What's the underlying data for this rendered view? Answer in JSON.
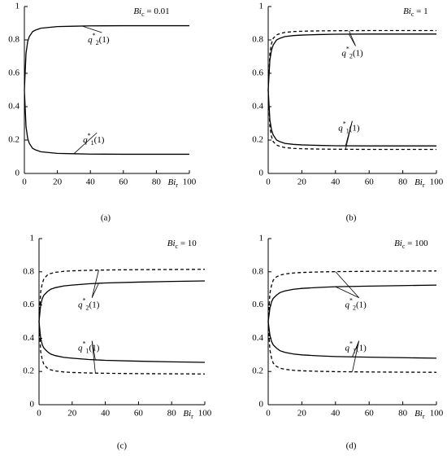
{
  "chart_data": [
    {
      "type": "line",
      "panel_label": "(a)",
      "annotation": [
        "Bi",
        "c",
        " = 0.01"
      ],
      "x_label": [
        "Bi",
        "r"
      ],
      "x": [
        0,
        1,
        2,
        3,
        5,
        7,
        10,
        15,
        20,
        30,
        40,
        60,
        80,
        100
      ],
      "xlim": [
        0,
        100
      ],
      "xticks": [
        0,
        20,
        40,
        60,
        80,
        100
      ],
      "ylim": [
        0,
        1
      ],
      "yticks": [
        0,
        0.2,
        0.4,
        0.6,
        0.8,
        1
      ],
      "series": [
        {
          "color": "#000000",
          "dashed": false,
          "values": [
            0.5,
            0.72,
            0.79,
            0.82,
            0.85,
            0.86,
            0.87,
            0.875,
            0.88,
            0.882,
            0.884,
            0.885,
            0.885,
            0.885
          ]
        },
        {
          "color": "#000000",
          "dashed": false,
          "values": [
            0.5,
            0.28,
            0.21,
            0.18,
            0.15,
            0.14,
            0.13,
            0.125,
            0.12,
            0.118,
            0.116,
            0.115,
            0.115,
            0.115
          ]
        }
      ],
      "curve_labels": [
        [
          "q",
          "*",
          "2",
          "(1)"
        ],
        [
          "q",
          "*",
          "1",
          "(1)"
        ]
      ]
    },
    {
      "type": "line",
      "panel_label": "(b)",
      "annotation": [
        "Bi",
        "c",
        " = 1"
      ],
      "x_label": [
        "Bi",
        "r"
      ],
      "x": [
        0,
        1,
        2,
        3,
        5,
        7,
        10,
        15,
        20,
        30,
        40,
        60,
        80,
        100
      ],
      "xlim": [
        0,
        100
      ],
      "xticks": [
        0,
        20,
        40,
        60,
        80,
        100
      ],
      "ylim": [
        0,
        1
      ],
      "yticks": [
        0,
        0.2,
        0.4,
        0.6,
        0.8,
        1
      ],
      "series": [
        {
          "color": "#000000",
          "dashed": false,
          "values": [
            0.5,
            0.68,
            0.74,
            0.77,
            0.8,
            0.81,
            0.82,
            0.826,
            0.829,
            0.832,
            0.834,
            0.835,
            0.835,
            0.835
          ]
        },
        {
          "color": "#000000",
          "dashed": false,
          "values": [
            0.5,
            0.32,
            0.26,
            0.23,
            0.2,
            0.19,
            0.18,
            0.174,
            0.171,
            0.168,
            0.166,
            0.165,
            0.165,
            0.165
          ]
        },
        {
          "color": "#000000",
          "dashed": true,
          "values": [
            0.5,
            0.72,
            0.78,
            0.81,
            0.83,
            0.838,
            0.845,
            0.85,
            0.852,
            0.854,
            0.855,
            0.856,
            0.856,
            0.856
          ]
        },
        {
          "color": "#000000",
          "dashed": true,
          "values": [
            0.5,
            0.28,
            0.22,
            0.19,
            0.17,
            0.162,
            0.155,
            0.15,
            0.148,
            0.146,
            0.145,
            0.144,
            0.144,
            0.144
          ]
        }
      ],
      "curve_labels": [
        [
          "q",
          "*",
          "2",
          "(1)"
        ],
        [
          "q",
          "*",
          "1",
          "(1)"
        ]
      ]
    },
    {
      "type": "line",
      "panel_label": "(c)",
      "annotation": [
        "Bi",
        "c",
        " = 10"
      ],
      "x_label": [
        "Bi",
        "r"
      ],
      "x": [
        0,
        1,
        2,
        3,
        5,
        7,
        10,
        15,
        20,
        30,
        40,
        60,
        80,
        100
      ],
      "xlim": [
        0,
        100
      ],
      "xticks": [
        0,
        20,
        40,
        60,
        80,
        100
      ],
      "ylim": [
        0,
        1
      ],
      "yticks": [
        0,
        0.2,
        0.4,
        0.6,
        0.8,
        1
      ],
      "series": [
        {
          "color": "#000000",
          "dashed": false,
          "values": [
            0.5,
            0.6,
            0.64,
            0.66,
            0.68,
            0.695,
            0.705,
            0.715,
            0.72,
            0.728,
            0.733,
            0.738,
            0.742,
            0.745
          ]
        },
        {
          "color": "#000000",
          "dashed": false,
          "values": [
            0.5,
            0.4,
            0.36,
            0.34,
            0.32,
            0.305,
            0.295,
            0.285,
            0.28,
            0.272,
            0.267,
            0.262,
            0.258,
            0.255
          ]
        },
        {
          "color": "#000000",
          "dashed": true,
          "values": [
            0.5,
            0.68,
            0.73,
            0.76,
            0.78,
            0.79,
            0.797,
            0.803,
            0.806,
            0.809,
            0.811,
            0.813,
            0.814,
            0.815
          ]
        },
        {
          "color": "#000000",
          "dashed": true,
          "values": [
            0.5,
            0.32,
            0.27,
            0.24,
            0.22,
            0.21,
            0.203,
            0.197,
            0.194,
            0.191,
            0.189,
            0.187,
            0.186,
            0.185
          ]
        }
      ],
      "curve_labels": [
        [
          "q",
          "*",
          "2",
          "(1)"
        ],
        [
          "q",
          "*",
          "1",
          "(1)"
        ]
      ]
    },
    {
      "type": "line",
      "panel_label": "(d)",
      "annotation": [
        "Bi",
        "c",
        " = 100"
      ],
      "x_label": [
        "Bi",
        "r"
      ],
      "x": [
        0,
        1,
        2,
        3,
        5,
        7,
        10,
        15,
        20,
        30,
        40,
        60,
        80,
        100
      ],
      "xlim": [
        0,
        100
      ],
      "xticks": [
        0,
        20,
        40,
        60,
        80,
        100
      ],
      "ylim": [
        0,
        1
      ],
      "yticks": [
        0,
        0.2,
        0.4,
        0.6,
        0.8,
        1
      ],
      "series": [
        {
          "color": "#000000",
          "dashed": false,
          "values": [
            0.5,
            0.58,
            0.62,
            0.64,
            0.66,
            0.675,
            0.685,
            0.695,
            0.7,
            0.706,
            0.71,
            0.714,
            0.717,
            0.72
          ]
        },
        {
          "color": "#000000",
          "dashed": false,
          "values": [
            0.5,
            0.42,
            0.38,
            0.36,
            0.34,
            0.325,
            0.315,
            0.305,
            0.3,
            0.294,
            0.29,
            0.286,
            0.283,
            0.28
          ]
        },
        {
          "color": "#000000",
          "dashed": true,
          "values": [
            0.5,
            0.67,
            0.72,
            0.75,
            0.77,
            0.78,
            0.787,
            0.793,
            0.796,
            0.799,
            0.801,
            0.803,
            0.804,
            0.805
          ]
        },
        {
          "color": "#000000",
          "dashed": true,
          "values": [
            0.5,
            0.33,
            0.28,
            0.25,
            0.23,
            0.22,
            0.213,
            0.207,
            0.204,
            0.201,
            0.199,
            0.197,
            0.196,
            0.195
          ]
        }
      ],
      "curve_labels": [
        [
          "q",
          "*",
          "2",
          "(1)"
        ],
        [
          "q",
          "*",
          "1",
          "(1)"
        ]
      ]
    }
  ]
}
